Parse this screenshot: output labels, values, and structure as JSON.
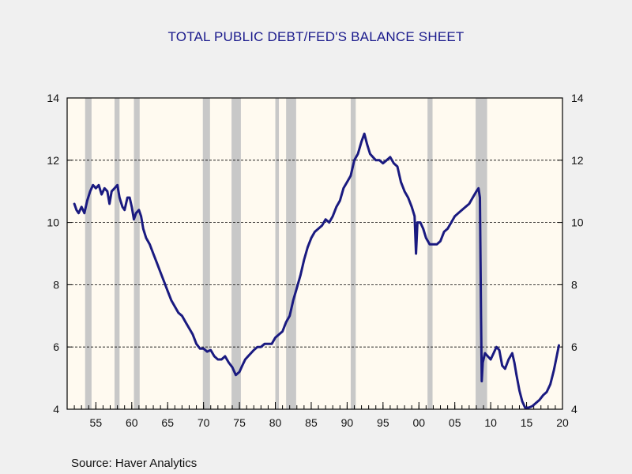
{
  "chart_data": {
    "type": "line",
    "title": "TOTAL PUBLIC DEBT/FED'S BALANCE SHEET",
    "xlabel": "",
    "ylabel": "",
    "xlim": [
      1951,
      2020
    ],
    "ylim": [
      4,
      14
    ],
    "y_ticks": [
      4,
      6,
      8,
      10,
      12,
      14
    ],
    "y_tick_labels": [
      "4",
      "6",
      "8",
      "10",
      "12",
      "14"
    ],
    "x_ticks": [
      1955,
      1960,
      1965,
      1970,
      1975,
      1980,
      1985,
      1990,
      1995,
      2000,
      2005,
      2010,
      2015,
      2020
    ],
    "x_tick_labels": [
      "55",
      "60",
      "65",
      "70",
      "75",
      "80",
      "85",
      "90",
      "95",
      "00",
      "05",
      "10",
      "15",
      "20"
    ],
    "grid": "horizontal dashed",
    "right_axis": true,
    "background": "#fffaf0",
    "recession_color": "#c8c8c8",
    "line_color": "#1a1a80",
    "recessions": [
      [
        1953.5,
        1954.4
      ],
      [
        1957.6,
        1958.3
      ],
      [
        1960.3,
        1961.1
      ],
      [
        1969.9,
        1970.9
      ],
      [
        1973.9,
        1975.2
      ],
      [
        1980.0,
        1980.5
      ],
      [
        1981.5,
        1982.9
      ],
      [
        1990.5,
        1991.2
      ],
      [
        2001.2,
        2001.9
      ],
      [
        2007.9,
        2009.5
      ]
    ],
    "series": [
      {
        "points": [
          [
            1952.0,
            10.6
          ],
          [
            1952.3,
            10.4
          ],
          [
            1952.6,
            10.3
          ],
          [
            1953.0,
            10.5
          ],
          [
            1953.4,
            10.3
          ],
          [
            1953.8,
            10.7
          ],
          [
            1954.2,
            11.0
          ],
          [
            1954.6,
            11.2
          ],
          [
            1955.0,
            11.1
          ],
          [
            1955.4,
            11.2
          ],
          [
            1955.8,
            10.9
          ],
          [
            1956.2,
            11.1
          ],
          [
            1956.6,
            11.0
          ],
          [
            1956.9,
            10.6
          ],
          [
            1957.2,
            11.0
          ],
          [
            1957.6,
            11.1
          ],
          [
            1958.0,
            11.2
          ],
          [
            1958.3,
            10.8
          ],
          [
            1958.7,
            10.5
          ],
          [
            1959.0,
            10.4
          ],
          [
            1959.4,
            10.8
          ],
          [
            1959.7,
            10.8
          ],
          [
            1960.0,
            10.5
          ],
          [
            1960.3,
            10.1
          ],
          [
            1960.6,
            10.3
          ],
          [
            1961.0,
            10.4
          ],
          [
            1961.3,
            10.2
          ],
          [
            1961.6,
            9.8
          ],
          [
            1962.0,
            9.5
          ],
          [
            1962.5,
            9.3
          ],
          [
            1963.0,
            9.0
          ],
          [
            1963.5,
            8.7
          ],
          [
            1964.0,
            8.4
          ],
          [
            1964.5,
            8.1
          ],
          [
            1965.0,
            7.8
          ],
          [
            1965.5,
            7.5
          ],
          [
            1966.0,
            7.3
          ],
          [
            1966.5,
            7.1
          ],
          [
            1967.0,
            7.0
          ],
          [
            1967.5,
            6.8
          ],
          [
            1968.0,
            6.6
          ],
          [
            1968.5,
            6.4
          ],
          [
            1969.0,
            6.1
          ],
          [
            1969.5,
            5.95
          ],
          [
            1970.0,
            5.95
          ],
          [
            1970.5,
            5.85
          ],
          [
            1971.0,
            5.9
          ],
          [
            1971.5,
            5.7
          ],
          [
            1972.0,
            5.6
          ],
          [
            1972.5,
            5.6
          ],
          [
            1973.0,
            5.7
          ],
          [
            1973.5,
            5.5
          ],
          [
            1974.0,
            5.35
          ],
          [
            1974.5,
            5.1
          ],
          [
            1975.0,
            5.2
          ],
          [
            1975.4,
            5.4
          ],
          [
            1975.8,
            5.6
          ],
          [
            1976.2,
            5.7
          ],
          [
            1976.6,
            5.8
          ],
          [
            1977.0,
            5.9
          ],
          [
            1977.5,
            6.0
          ],
          [
            1978.0,
            6.0
          ],
          [
            1978.5,
            6.1
          ],
          [
            1979.0,
            6.1
          ],
          [
            1979.5,
            6.1
          ],
          [
            1980.0,
            6.3
          ],
          [
            1980.5,
            6.4
          ],
          [
            1981.0,
            6.5
          ],
          [
            1981.5,
            6.8
          ],
          [
            1982.0,
            7.0
          ],
          [
            1982.5,
            7.5
          ],
          [
            1983.0,
            7.9
          ],
          [
            1983.5,
            8.3
          ],
          [
            1984.0,
            8.8
          ],
          [
            1984.5,
            9.2
          ],
          [
            1985.0,
            9.5
          ],
          [
            1985.5,
            9.7
          ],
          [
            1986.0,
            9.8
          ],
          [
            1986.5,
            9.9
          ],
          [
            1987.0,
            10.1
          ],
          [
            1987.5,
            10.0
          ],
          [
            1988.0,
            10.2
          ],
          [
            1988.5,
            10.5
          ],
          [
            1989.0,
            10.7
          ],
          [
            1989.5,
            11.1
          ],
          [
            1990.0,
            11.3
          ],
          [
            1990.5,
            11.5
          ],
          [
            1991.0,
            12.0
          ],
          [
            1991.5,
            12.2
          ],
          [
            1992.0,
            12.6
          ],
          [
            1992.4,
            12.85
          ],
          [
            1992.8,
            12.5
          ],
          [
            1993.2,
            12.2
          ],
          [
            1993.6,
            12.1
          ],
          [
            1994.0,
            12.0
          ],
          [
            1994.5,
            12.0
          ],
          [
            1995.0,
            11.9
          ],
          [
            1995.5,
            12.0
          ],
          [
            1996.0,
            12.1
          ],
          [
            1996.5,
            11.9
          ],
          [
            1997.0,
            11.8
          ],
          [
            1997.5,
            11.3
          ],
          [
            1998.0,
            11.0
          ],
          [
            1998.5,
            10.8
          ],
          [
            1999.0,
            10.5
          ],
          [
            1999.4,
            10.2
          ],
          [
            1999.6,
            9.0
          ],
          [
            1999.8,
            10.0
          ],
          [
            2000.2,
            10.0
          ],
          [
            2000.6,
            9.8
          ],
          [
            2001.0,
            9.5
          ],
          [
            2001.5,
            9.3
          ],
          [
            2002.0,
            9.3
          ],
          [
            2002.5,
            9.3
          ],
          [
            2003.0,
            9.4
          ],
          [
            2003.5,
            9.7
          ],
          [
            2004.0,
            9.8
          ],
          [
            2004.5,
            10.0
          ],
          [
            2005.0,
            10.2
          ],
          [
            2005.5,
            10.3
          ],
          [
            2006.0,
            10.4
          ],
          [
            2006.5,
            10.5
          ],
          [
            2007.0,
            10.6
          ],
          [
            2007.5,
            10.8
          ],
          [
            2008.0,
            11.0
          ],
          [
            2008.3,
            11.1
          ],
          [
            2008.5,
            10.8
          ],
          [
            2008.65,
            7.0
          ],
          [
            2008.75,
            4.9
          ],
          [
            2008.9,
            5.5
          ],
          [
            2009.2,
            5.8
          ],
          [
            2009.6,
            5.7
          ],
          [
            2010.0,
            5.6
          ],
          [
            2010.4,
            5.8
          ],
          [
            2010.8,
            6.0
          ],
          [
            2011.2,
            5.9
          ],
          [
            2011.6,
            5.4
          ],
          [
            2012.0,
            5.3
          ],
          [
            2012.5,
            5.6
          ],
          [
            2013.0,
            5.8
          ],
          [
            2013.3,
            5.5
          ],
          [
            2013.6,
            5.1
          ],
          [
            2014.0,
            4.6
          ],
          [
            2014.4,
            4.25
          ],
          [
            2014.8,
            4.05
          ],
          [
            2015.3,
            4.05
          ],
          [
            2015.8,
            4.1
          ],
          [
            2016.3,
            4.2
          ],
          [
            2016.8,
            4.3
          ],
          [
            2017.3,
            4.45
          ],
          [
            2017.8,
            4.55
          ],
          [
            2018.3,
            4.8
          ],
          [
            2018.8,
            5.25
          ],
          [
            2019.2,
            5.7
          ],
          [
            2019.5,
            6.05
          ]
        ]
      }
    ]
  },
  "source": "Source:  Haver Analytics"
}
